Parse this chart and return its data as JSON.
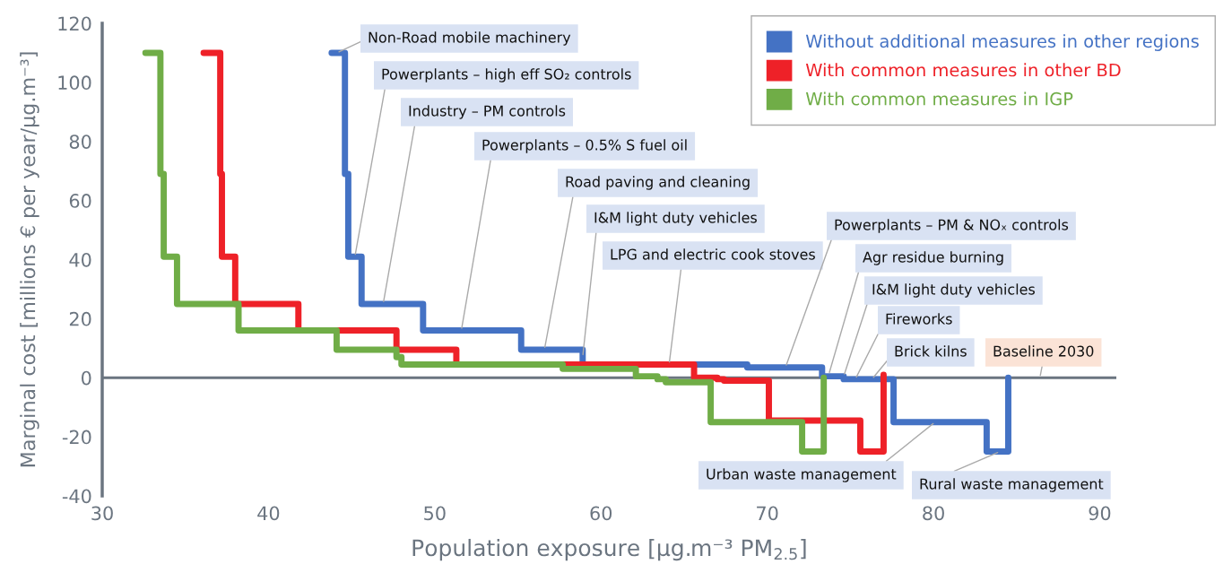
{
  "chart_data": {
    "type": "step",
    "xlabel": "Population exposure [μg.m⁻³ PM$_{2.5}$]",
    "ylabel": "Marginal cost [millions € per year/μg.m⁻³]",
    "xlim": [
      30,
      91
    ],
    "xticks": [
      30,
      40,
      50,
      60,
      70,
      80,
      90
    ],
    "ylim": [
      -40,
      120
    ],
    "yticks": [
      -40,
      -20,
      0,
      20,
      40,
      60,
      80,
      100,
      120
    ],
    "grid": false,
    "legend": "top right",
    "ref_lines": [
      {
        "axis": "y",
        "value": 0,
        "color": "#6b7580"
      }
    ],
    "series": [
      {
        "name": "Without additional measures in other regions",
        "color": "#4472c4",
        "x": [
          43.8,
          44.6,
          44.8,
          45.6,
          49.3,
          55.2,
          58.9,
          68.8,
          73.3,
          74.6,
          77.6,
          83.2,
          84.5
        ],
        "values": [
          110,
          69,
          41,
          25,
          16,
          9.5,
          4.5,
          3.5,
          0.5,
          -0.5,
          -15,
          -25,
          0
        ]
      },
      {
        "name": "With common measures in other BD",
        "color": "#ee2128",
        "x": [
          36.1,
          37.1,
          37.2,
          38.0,
          41.8,
          47.7,
          51.3,
          65.6,
          67.0,
          67.4,
          70.1,
          75.6,
          77.0
        ],
        "values": [
          110,
          69,
          41,
          25,
          16,
          9.5,
          4.5,
          0,
          -0.5,
          -1,
          -14.5,
          -25,
          1
        ]
      },
      {
        "name": "With common measures in IGP",
        "color": "#70ad47",
        "x": [
          32.6,
          33.5,
          33.7,
          34.5,
          38.2,
          44.1,
          47.7,
          48.0,
          57.7,
          62.1,
          63.4,
          63.9,
          66.6,
          72.1,
          73.4
        ],
        "values": [
          110,
          69,
          41,
          25,
          16,
          9.5,
          7,
          4.5,
          3,
          0.5,
          -0.5,
          -1.5,
          -15,
          -25,
          0
        ]
      }
    ],
    "annotations": [
      {
        "text": "Non-Road mobile machinery",
        "x": 44.1,
        "y": 110
      },
      {
        "text": "Powerplants – high eff SO₂ controls",
        "x": 45.2,
        "y": 41
      },
      {
        "text": "Industry – PM controls",
        "x": 46.9,
        "y": 25
      },
      {
        "text": "Powerplants – 0.5% S fuel oil",
        "x": 51.6,
        "y": 16
      },
      {
        "text": "Road paving and cleaning",
        "x": 56.6,
        "y": 9.5
      },
      {
        "text": "I&M light duty vehicles",
        "x": 58.9,
        "y": 7
      },
      {
        "text": "LPG and electric cook stoves",
        "x": 64.1,
        "y": 4.5
      },
      {
        "text": "Powerplants – PM & NOₓ controls",
        "x": 71.1,
        "y": 3.5
      },
      {
        "text": "Agr residue burning",
        "x": 73.7,
        "y": 1
      },
      {
        "text": "I&M light duty vehicles",
        "x": 74.6,
        "y": 0.5
      },
      {
        "text": "Fireworks",
        "x": 75.3,
        "y": -0.5
      },
      {
        "text": "Brick kilns",
        "x": 76.3,
        "y": -0.5
      },
      {
        "text": "Baseline 2030",
        "x": 86.4,
        "y": 0
      },
      {
        "text": "Urban waste management",
        "x": 80.1,
        "y": -15
      },
      {
        "text": "Rural waste management",
        "x": 84.0,
        "y": -25
      }
    ]
  }
}
